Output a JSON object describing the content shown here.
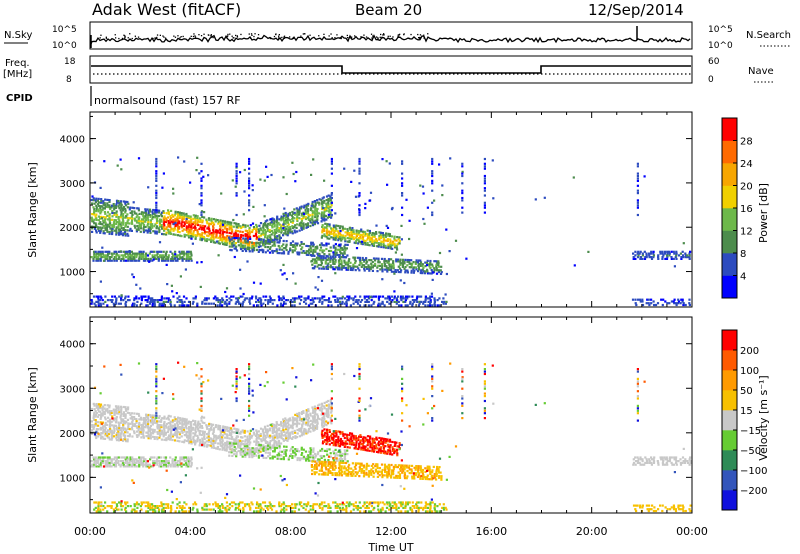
{
  "header": {
    "station": "Adak West (fitACF)",
    "beam": "Beam 20",
    "date": "12/Sep/2014"
  },
  "panels": {
    "nsky_label": "N.Sky",
    "nsky_ticks": [
      "10^5",
      "10^0"
    ],
    "nsearch_label": "N.Search",
    "nsearch_ticks": [
      "10^5",
      "10^0"
    ],
    "freq_label": "Freq.",
    "freq_unit": "[MHz]",
    "freq_ticks": [
      "18",
      "8"
    ],
    "nave_label": "Nave",
    "nave_ticks": [
      "60",
      "0"
    ],
    "cpid_label": "CPID",
    "cpid_value": "normalsound (fast) 157 RF"
  },
  "colors": {
    "power": [
      "#0000ff",
      "#2c4bbf",
      "#4c8c4c",
      "#6db84a",
      "#f0d000",
      "#f7a600",
      "#ff6a00",
      "#ff0000"
    ],
    "velocity": [
      "#ff0000",
      "#ff5a00",
      "#ff9a00",
      "#f7c000",
      "#c8c8c8",
      "#66cc33",
      "#2e8b57",
      "#3355bb",
      "#1010dd"
    ]
  },
  "chart_data": [
    {
      "type": "heatmap",
      "name": "power",
      "xlabel": "",
      "ylabel": "Slant Range [km]",
      "x_ticks": [
        "00:00",
        "04:00",
        "08:00",
        "12:00",
        "16:00",
        "20:00",
        "00:00"
      ],
      "y_ticks": [
        "1000",
        "2000",
        "3000",
        "4000"
      ],
      "xlim": [
        0,
        24
      ],
      "ylim": [
        200,
        4600
      ],
      "colorbar_label": "Power [dB]",
      "colorbar_ticks": [
        "4",
        "8",
        "12",
        "16",
        "20",
        "24",
        "28"
      ],
      "colorbar_range": [
        0,
        32
      ]
    },
    {
      "type": "heatmap",
      "name": "velocity",
      "xlabel": "Time UT",
      "ylabel": "Slant Range [km]",
      "x_ticks": [
        "00:00",
        "04:00",
        "08:00",
        "12:00",
        "16:00",
        "20:00",
        "00:00"
      ],
      "y_ticks": [
        "1000",
        "2000",
        "3000",
        "4000"
      ],
      "xlim": [
        0,
        24
      ],
      "ylim": [
        200,
        4600
      ],
      "colorbar_label": "Velocity [m s⁻¹]",
      "colorbar_ticks": [
        "200",
        "100",
        "50",
        "15",
        "−15",
        "−50",
        "−100",
        "−200"
      ],
      "colorbar_range": [
        -250,
        250
      ]
    }
  ]
}
